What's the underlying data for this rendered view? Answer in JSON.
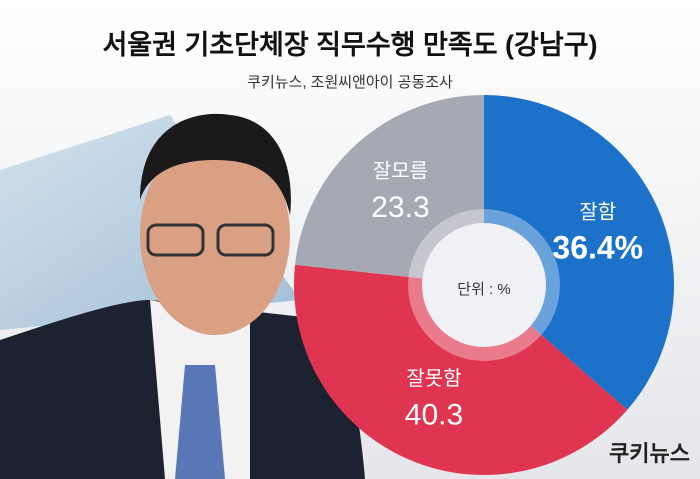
{
  "chart_data": {
    "type": "donut",
    "title": "서울권 기초단체장 직무수행 만족도 (강남구)",
    "subtitle": "쿠키뉴스, 조원씨앤아이 공동조사",
    "center_label": "단위 : %",
    "logo": "쿠키뉴스",
    "categories": [
      "잘함",
      "잘못함",
      "잘모름"
    ],
    "values": [
      36.4,
      40.3,
      23.3
    ],
    "value_labels": [
      "36.4%",
      "40.3",
      "23.3"
    ],
    "colors": [
      "#1b72c8",
      "#df3550",
      "#a6a8b4"
    ]
  }
}
